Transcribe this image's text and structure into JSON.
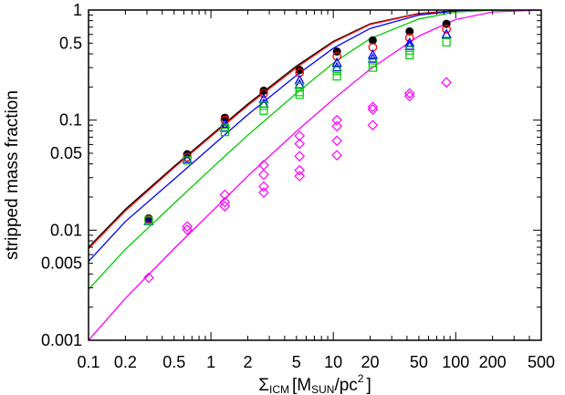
{
  "chart_data": {
    "type": "scatter",
    "title": "",
    "ylabel": "stripped mass fraction",
    "xlabel": {
      "sigma": "Σ",
      "sigma_sub": "ICM",
      "open": "[M",
      "m_sub": "SUN",
      "slash": "/pc",
      "sup": "2",
      "close": "]"
    },
    "x_scale": "log",
    "y_scale": "log",
    "xlim": [
      0.1,
      500
    ],
    "ylim": [
      0.001,
      1
    ],
    "x_ticks": [
      {
        "value": 0.1,
        "label": "0.1"
      },
      {
        "value": 0.2,
        "label": "0.2"
      },
      {
        "value": 0.5,
        "label": "0.5"
      },
      {
        "value": 1,
        "label": "1"
      },
      {
        "value": 2,
        "label": "2"
      },
      {
        "value": 5,
        "label": "5"
      },
      {
        "value": 10,
        "label": "10"
      },
      {
        "value": 20,
        "label": "20"
      },
      {
        "value": 50,
        "label": "50"
      },
      {
        "value": 100,
        "label": "100"
      },
      {
        "value": 200,
        "label": "200"
      },
      {
        "value": 500,
        "label": "500"
      }
    ],
    "y_ticks": [
      {
        "value": 0.001,
        "label": "0.001"
      },
      {
        "value": 0.005,
        "label": "0.005"
      },
      {
        "value": 0.01,
        "label": "0.01"
      },
      {
        "value": 0.05,
        "label": "0.05"
      },
      {
        "value": 0.1,
        "label": "0.1"
      },
      {
        "value": 0.5,
        "label": "0.5"
      },
      {
        "value": 1,
        "label": "1"
      }
    ],
    "grid": false,
    "legend": "none",
    "series": [
      {
        "marker": "filled-circle",
        "color": "#000000",
        "points": [
          [
            0.31,
            0.0128
          ],
          [
            0.64,
            0.049
          ],
          [
            1.3,
            0.105
          ],
          [
            2.7,
            0.185
          ],
          [
            5.3,
            0.285
          ],
          [
            10.7,
            0.42
          ],
          [
            21,
            0.53
          ],
          [
            42,
            0.64
          ],
          [
            84,
            0.75
          ]
        ]
      },
      {
        "marker": "open-circle",
        "color": "#ff0000",
        "points": [
          [
            0.31,
            0.0125
          ],
          [
            0.64,
            0.046
          ],
          [
            1.3,
            0.1
          ],
          [
            2.7,
            0.175
          ],
          [
            5.3,
            0.27
          ],
          [
            10.7,
            0.38
          ],
          [
            21,
            0.46
          ],
          [
            42,
            0.56
          ],
          [
            84,
            0.67
          ]
        ]
      },
      {
        "marker": "open-triangle",
        "color": "#0000ff",
        "points": [
          [
            0.31,
            0.012
          ],
          [
            0.64,
            0.044
          ],
          [
            1.3,
            0.092
          ],
          [
            1.3,
            0.085
          ],
          [
            2.7,
            0.155
          ],
          [
            2.7,
            0.14
          ],
          [
            5.3,
            0.23
          ],
          [
            5.3,
            0.21
          ],
          [
            10.7,
            0.33
          ],
          [
            10.7,
            0.3
          ],
          [
            21,
            0.39
          ],
          [
            21,
            0.36
          ],
          [
            42,
            0.5
          ],
          [
            42,
            0.47
          ],
          [
            84,
            0.6
          ]
        ]
      },
      {
        "marker": "open-square",
        "color": "#00cc00",
        "points": [
          [
            0.31,
            0.0122
          ],
          [
            0.64,
            0.043
          ],
          [
            1.3,
            0.085
          ],
          [
            1.3,
            0.078
          ],
          [
            2.7,
            0.135
          ],
          [
            2.7,
            0.122
          ],
          [
            5.3,
            0.2
          ],
          [
            5.3,
            0.18
          ],
          [
            5.3,
            0.17
          ],
          [
            10.7,
            0.28
          ],
          [
            10.7,
            0.25
          ],
          [
            21,
            0.33
          ],
          [
            21,
            0.3
          ],
          [
            42,
            0.43
          ],
          [
            42,
            0.39
          ],
          [
            84,
            0.51
          ]
        ]
      },
      {
        "marker": "open-diamond",
        "color": "#ff00ff",
        "points": [
          [
            0.31,
            0.0037
          ],
          [
            0.64,
            0.0108
          ],
          [
            0.64,
            0.0101
          ],
          [
            1.3,
            0.021
          ],
          [
            1.3,
            0.018
          ],
          [
            1.3,
            0.0165
          ],
          [
            2.7,
            0.039
          ],
          [
            2.7,
            0.032
          ],
          [
            2.7,
            0.025
          ],
          [
            2.7,
            0.022
          ],
          [
            5.3,
            0.072
          ],
          [
            5.3,
            0.061
          ],
          [
            5.3,
            0.047
          ],
          [
            5.3,
            0.035
          ],
          [
            5.3,
            0.031
          ],
          [
            10.7,
            0.1
          ],
          [
            10.7,
            0.088
          ],
          [
            10.7,
            0.065
          ],
          [
            10.7,
            0.048
          ],
          [
            21,
            0.132
          ],
          [
            21,
            0.125
          ],
          [
            21,
            0.09
          ],
          [
            42,
            0.175
          ],
          [
            42,
            0.165
          ],
          [
            84,
            0.22
          ]
        ]
      }
    ],
    "curves": [
      {
        "color": "#000000",
        "points": [
          [
            0.1,
            0.007
          ],
          [
            0.2,
            0.0155
          ],
          [
            0.5,
            0.038
          ],
          [
            1,
            0.073
          ],
          [
            2,
            0.14
          ],
          [
            5,
            0.31
          ],
          [
            10,
            0.52
          ],
          [
            20,
            0.75
          ],
          [
            50,
            0.93
          ],
          [
            100,
            0.985
          ],
          [
            200,
            1
          ],
          [
            500,
            1
          ]
        ]
      },
      {
        "color": "#ff0000",
        "points": [
          [
            0.1,
            0.0068
          ],
          [
            0.2,
            0.015
          ],
          [
            0.5,
            0.037
          ],
          [
            1,
            0.071
          ],
          [
            2,
            0.136
          ],
          [
            5,
            0.3
          ],
          [
            10,
            0.51
          ],
          [
            20,
            0.74
          ],
          [
            50,
            0.925
          ],
          [
            100,
            0.985
          ],
          [
            200,
            1
          ],
          [
            500,
            1
          ]
        ]
      },
      {
        "color": "#0000ff",
        "points": [
          [
            0.1,
            0.0052
          ],
          [
            0.2,
            0.012
          ],
          [
            0.5,
            0.029
          ],
          [
            1,
            0.057
          ],
          [
            2,
            0.112
          ],
          [
            5,
            0.255
          ],
          [
            10,
            0.45
          ],
          [
            20,
            0.68
          ],
          [
            50,
            0.9
          ],
          [
            100,
            0.98
          ],
          [
            200,
            1
          ],
          [
            500,
            1
          ]
        ]
      },
      {
        "color": "#00cc00",
        "points": [
          [
            0.1,
            0.0029
          ],
          [
            0.2,
            0.0067
          ],
          [
            0.5,
            0.0175
          ],
          [
            1,
            0.036
          ],
          [
            2,
            0.073
          ],
          [
            5,
            0.175
          ],
          [
            10,
            0.33
          ],
          [
            20,
            0.55
          ],
          [
            50,
            0.83
          ],
          [
            100,
            0.96
          ],
          [
            200,
            0.995
          ],
          [
            500,
            1
          ]
        ]
      },
      {
        "color": "#ff00ff",
        "points": [
          [
            0.1,
            0.001
          ],
          [
            0.2,
            0.0024
          ],
          [
            0.5,
            0.0068
          ],
          [
            1,
            0.0145
          ],
          [
            2,
            0.031
          ],
          [
            5,
            0.079
          ],
          [
            10,
            0.155
          ],
          [
            20,
            0.29
          ],
          [
            50,
            0.58
          ],
          [
            100,
            0.82
          ],
          [
            200,
            0.96
          ],
          [
            500,
            1
          ]
        ]
      }
    ]
  }
}
